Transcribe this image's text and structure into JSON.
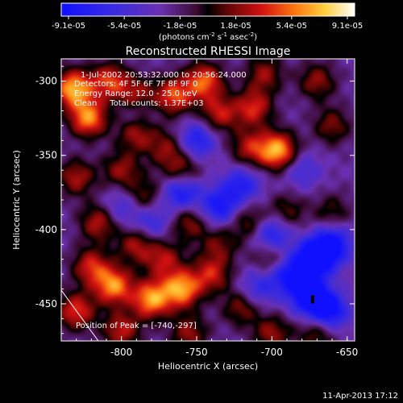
{
  "chart_data": {
    "type": "heatmap",
    "title": "Reconstructed RHESSI Image",
    "xlabel": "Heliocentric X (arcsec)",
    "ylabel": "Heliocentric Y (arcsec)",
    "xlim": [
      -840,
      -645
    ],
    "ylim": [
      -475,
      -285
    ],
    "x_ticks": [
      "-800",
      "-750",
      "-700",
      "-650"
    ],
    "y_ticks": [
      "-300",
      "-350",
      "-400",
      "-450"
    ],
    "colorbar": {
      "ticks": [
        "-9.1e-05",
        "-5.4e-05",
        "-1.8e-05",
        "1.8e-05",
        "5.4e-05",
        "9.1e-05"
      ],
      "unit_text": "(photons cm",
      "unit_sup1": "-2",
      "unit_mid": " s",
      "unit_sup2": "-1",
      "unit_end": " asec",
      "unit_sup3": "-2",
      "unit_close": ")",
      "range": [
        -9.1e-05,
        9.1e-05
      ]
    },
    "annotations": {
      "time_range": "1-Jul-2002 20:53:32.000 to 20:56:24.000",
      "detectors": "Detectors: 4F 5F 6F 7F 8F 9F 0",
      "energy": "Energy Range: 12.0 - 25.0 keV",
      "clean": "Clean     Total counts: 1.37E+03",
      "peak": "Position of Peak = [-740,-297]"
    },
    "blobs": [
      {
        "x": -832,
        "y": -305,
        "v": 1.0
      },
      {
        "x": -822,
        "y": -325,
        "v": 0.9
      },
      {
        "x": -808,
        "y": -300,
        "v": 0.7
      },
      {
        "x": -790,
        "y": -310,
        "v": 0.6
      },
      {
        "x": -790,
        "y": -335,
        "v": 0.55
      },
      {
        "x": -765,
        "y": -310,
        "v": 0.75
      },
      {
        "x": -745,
        "y": -300,
        "v": 0.8
      },
      {
        "x": -735,
        "y": -322,
        "v": 0.6
      },
      {
        "x": -712,
        "y": -318,
        "v": 0.65
      },
      {
        "x": -705,
        "y": -295,
        "v": 0.5
      },
      {
        "x": -696,
        "y": -347,
        "v": 1.0
      },
      {
        "x": -715,
        "y": -345,
        "v": 0.55
      },
      {
        "x": -670,
        "y": -300,
        "v": 0.5
      },
      {
        "x": -660,
        "y": -330,
        "v": 0.45
      },
      {
        "x": -770,
        "y": -345,
        "v": 0.45
      },
      {
        "x": -800,
        "y": -360,
        "v": 0.5
      },
      {
        "x": -760,
        "y": -360,
        "v": 0.5
      },
      {
        "x": -830,
        "y": -365,
        "v": 0.55
      },
      {
        "x": -815,
        "y": -395,
        "v": 0.6
      },
      {
        "x": -785,
        "y": -378,
        "v": 0.45
      },
      {
        "x": -755,
        "y": -395,
        "v": 0.5
      },
      {
        "x": -790,
        "y": -410,
        "v": 0.55
      },
      {
        "x": -820,
        "y": -425,
        "v": 0.65
      },
      {
        "x": -772,
        "y": -420,
        "v": 0.55
      },
      {
        "x": -805,
        "y": -438,
        "v": 0.9
      },
      {
        "x": -780,
        "y": -447,
        "v": 0.95
      },
      {
        "x": -760,
        "y": -440,
        "v": 0.95
      },
      {
        "x": -830,
        "y": -455,
        "v": 0.7
      },
      {
        "x": -740,
        "y": -430,
        "v": 0.6
      },
      {
        "x": -720,
        "y": -452,
        "v": 0.5
      },
      {
        "x": -700,
        "y": -420,
        "v": 0.45
      },
      {
        "x": -715,
        "y": -395,
        "v": 0.45
      },
      {
        "x": -735,
        "y": -410,
        "v": 0.4
      },
      {
        "x": -690,
        "y": -388,
        "v": 0.4
      },
      {
        "x": -700,
        "y": -470,
        "v": 0.5
      },
      {
        "x": -670,
        "y": -470,
        "v": 0.45
      },
      {
        "x": -800,
        "y": -468,
        "v": 0.6
      },
      {
        "x": -755,
        "y": -470,
        "v": 0.5
      },
      {
        "x": -660,
        "y": -388,
        "v": 0.35
      },
      {
        "x": -790,
        "y": -320,
        "v": -0.3
      },
      {
        "x": -750,
        "y": -340,
        "v": -0.6
      },
      {
        "x": -760,
        "y": -375,
        "v": -0.7
      },
      {
        "x": -735,
        "y": -385,
        "v": -0.65
      },
      {
        "x": -720,
        "y": -370,
        "v": -0.55
      },
      {
        "x": -700,
        "y": -403,
        "v": -0.65
      },
      {
        "x": -690,
        "y": -430,
        "v": -0.7
      },
      {
        "x": -672,
        "y": -420,
        "v": -1.0
      },
      {
        "x": -660,
        "y": -410,
        "v": -0.8
      },
      {
        "x": -675,
        "y": -445,
        "v": -0.9
      },
      {
        "x": -662,
        "y": -455,
        "v": -0.8
      },
      {
        "x": -710,
        "y": -440,
        "v": -0.45
      },
      {
        "x": -680,
        "y": -360,
        "v": -0.35
      },
      {
        "x": -800,
        "y": -385,
        "v": -0.4
      },
      {
        "x": -780,
        "y": -395,
        "v": -0.45
      }
    ]
  },
  "footer": {
    "timestamp": "11-Apr-2013 17:12"
  }
}
